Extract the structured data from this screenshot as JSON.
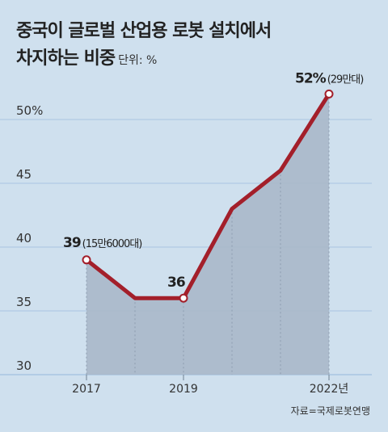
{
  "title": {
    "line1": "중국이 글로벌 산업용 로봇 설치에서",
    "line2": "차지하는 비중",
    "unit": "단위: %"
  },
  "source": "자료=국제로봇연맹",
  "colors": {
    "background": "#cfe0ee",
    "area": "#a9b8c9",
    "line": "#a31f2a",
    "grid": "#a9c5e2"
  },
  "chart_data": {
    "type": "line",
    "x": [
      2017,
      2018,
      2019,
      2020,
      2021,
      2022
    ],
    "x_tick_labels": [
      "2017",
      "2019",
      "2022년"
    ],
    "x_tick_values": [
      2017,
      2019,
      2022
    ],
    "series": [
      {
        "values": [
          39,
          36,
          36,
          43,
          46,
          52
        ]
      }
    ],
    "y_ticks": [
      "30",
      "35",
      "40",
      "45",
      "50%"
    ],
    "y_tick_values": [
      30,
      35,
      40,
      45,
      50
    ],
    "ylim": [
      30,
      55
    ],
    "grid": true,
    "annotations": [
      {
        "x": 2017,
        "value": "39",
        "note": "(15만6000대)"
      },
      {
        "x": 2019,
        "value": "36",
        "note": ""
      },
      {
        "x": 2022,
        "value": "52%",
        "note": "(29만대)"
      }
    ]
  }
}
